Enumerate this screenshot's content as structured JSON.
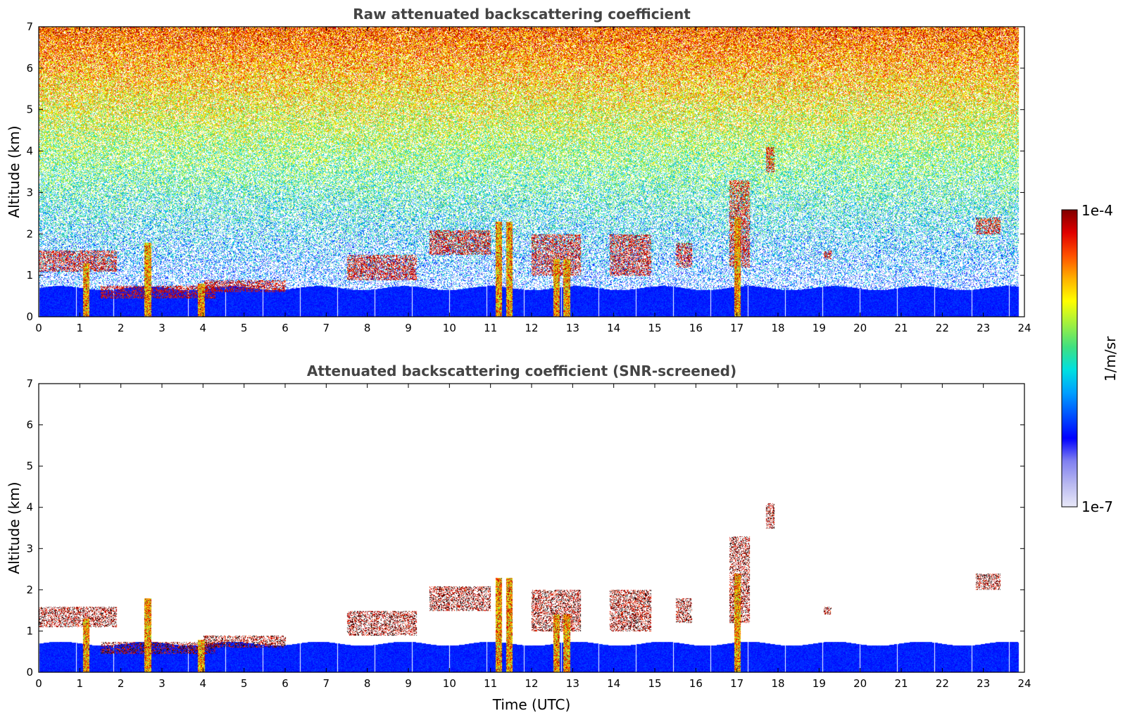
{
  "chart_data": [
    {
      "type": "heatmap",
      "title": "Raw attenuated backscattering coefficient",
      "xlabel": "",
      "ylabel": "Altitude (km)",
      "xlim": [
        0,
        24
      ],
      "ylim": [
        0,
        7
      ],
      "xticks": [
        0,
        1,
        2,
        3,
        4,
        5,
        6,
        7,
        8,
        9,
        10,
        11,
        12,
        13,
        14,
        15,
        16,
        17,
        18,
        19,
        20,
        21,
        22,
        23,
        24
      ],
      "yticks": [
        0,
        1,
        2,
        3,
        4,
        5,
        6,
        7
      ],
      "data_extent_x": [
        0,
        23.85
      ],
      "screened": false,
      "boundary_layer_top_km": 0.7,
      "cloud_layers": [
        {
          "t0": 0.0,
          "t1": 1.9,
          "z0": 1.1,
          "z1": 1.6
        },
        {
          "t0": 1.5,
          "t1": 4.3,
          "z0": 0.45,
          "z1": 0.75
        },
        {
          "t0": 4.0,
          "t1": 6.0,
          "z0": 0.6,
          "z1": 0.9
        },
        {
          "t0": 7.5,
          "t1": 9.2,
          "z0": 0.9,
          "z1": 1.5
        },
        {
          "t0": 9.5,
          "t1": 11.0,
          "z0": 1.5,
          "z1": 2.1
        },
        {
          "t0": 12.0,
          "t1": 13.2,
          "z0": 1.0,
          "z1": 2.0
        },
        {
          "t0": 13.9,
          "t1": 14.9,
          "z0": 1.0,
          "z1": 2.0
        },
        {
          "t0": 15.5,
          "t1": 15.9,
          "z0": 1.2,
          "z1": 1.8
        },
        {
          "t0": 16.8,
          "t1": 17.3,
          "z0": 1.2,
          "z1": 3.3
        },
        {
          "t0": 17.7,
          "t1": 17.9,
          "z0": 3.5,
          "z1": 4.1
        },
        {
          "t0": 19.1,
          "t1": 19.3,
          "z0": 1.4,
          "z1": 1.6
        },
        {
          "t0": 22.8,
          "t1": 23.4,
          "z0": 2.0,
          "z1": 2.4
        }
      ],
      "precipitation_columns": [
        {
          "t": 1.15,
          "z_top": 1.3
        },
        {
          "t": 2.65,
          "z_top": 1.8
        },
        {
          "t": 3.95,
          "z_top": 0.8
        },
        {
          "t": 11.2,
          "z_top": 2.3
        },
        {
          "t": 11.45,
          "z_top": 2.3
        },
        {
          "t": 12.6,
          "z_top": 1.4
        },
        {
          "t": 12.85,
          "z_top": 1.4
        },
        {
          "t": 17.0,
          "z_top": 2.4
        }
      ]
    },
    {
      "type": "heatmap",
      "title": "Attenuated backscattering coefficient (SNR-screened)",
      "xlabel": "Time (UTC)",
      "ylabel": "Altitude (km)",
      "xlim": [
        0,
        24
      ],
      "ylim": [
        0,
        7
      ],
      "xticks": [
        0,
        1,
        2,
        3,
        4,
        5,
        6,
        7,
        8,
        9,
        10,
        11,
        12,
        13,
        14,
        15,
        16,
        17,
        18,
        19,
        20,
        21,
        22,
        23,
        24
      ],
      "yticks": [
        0,
        1,
        2,
        3,
        4,
        5,
        6,
        7
      ],
      "data_extent_x": [
        0,
        23.85
      ],
      "screened": true,
      "boundary_layer_top_km": 0.7
    }
  ],
  "colorbar": {
    "label": "1/m/sr",
    "min_label": "1e-7",
    "max_label": "1e-4",
    "scale": "log",
    "range": [
      1e-07,
      0.0001
    ],
    "colors": [
      "#e8e8f8",
      "#b8b8f0",
      "#8080f0",
      "#0000ff",
      "#0050ff",
      "#00a0ff",
      "#00e0e0",
      "#40e080",
      "#a0f040",
      "#ffff00",
      "#ffb000",
      "#ff5000",
      "#e00000",
      "#800000"
    ]
  }
}
